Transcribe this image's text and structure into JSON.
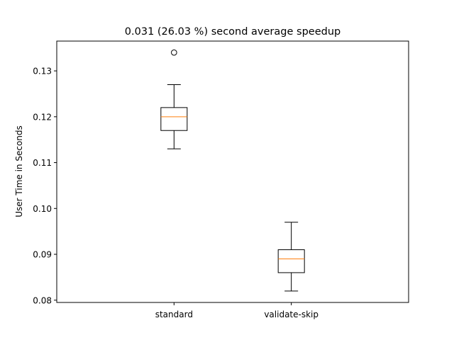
{
  "chart_data": {
    "type": "boxplot",
    "title": "0.031 (26.03 %) second average speedup",
    "xlabel": "",
    "ylabel": "User Time in Seconds",
    "ylim": [
      0.0795,
      0.1365
    ],
    "yticks": [
      0.08,
      0.09,
      0.1,
      0.11,
      0.12,
      0.13
    ],
    "ytick_labels": [
      "0.08",
      "0.09",
      "0.10",
      "0.11",
      "0.12",
      "0.13"
    ],
    "categories": [
      "standard",
      "validate-skip"
    ],
    "boxes": [
      {
        "name": "standard",
        "whisker_low": 0.113,
        "q1": 0.117,
        "median": 0.12,
        "q3": 0.122,
        "whisker_high": 0.127,
        "outliers": [
          0.134
        ]
      },
      {
        "name": "validate-skip",
        "whisker_low": 0.082,
        "q1": 0.086,
        "median": 0.089,
        "q3": 0.091,
        "whisker_high": 0.097,
        "outliers": []
      }
    ],
    "colors": {
      "box": "#000000",
      "median": "#ff7f0e",
      "background": "#ffffff"
    },
    "grid": false,
    "legend": "none"
  }
}
